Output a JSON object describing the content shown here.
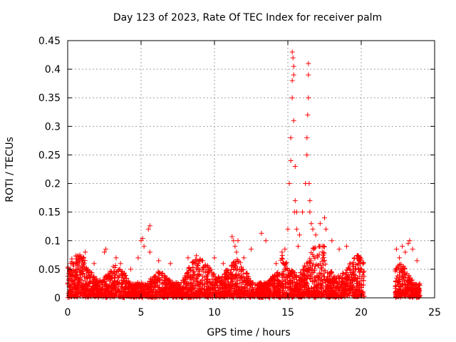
{
  "chart_data": {
    "type": "scatter",
    "title": "Day 123 of 2023, Rate Of TEC Index for receiver palm",
    "xlabel": "GPS time / hours",
    "ylabel": "ROTI / TECUs",
    "xlim": [
      0,
      25
    ],
    "ylim": [
      0,
      0.45
    ],
    "xticks": [
      "0",
      "5",
      "10",
      "15",
      "20",
      "25"
    ],
    "yticks": [
      "0",
      "0.05",
      "0.1",
      "0.15",
      "0.2",
      "0.25",
      "0.3",
      "0.35",
      "0.4",
      "0.45"
    ],
    "grid": true,
    "marker": "+",
    "series_color": "#ff0000",
    "data_gap_hours": [
      20.2,
      22.3
    ],
    "series": [
      {
        "name": "ROTI",
        "x": [
          0.1,
          0.3,
          0.5,
          1.1,
          1.2,
          1.8,
          2.5,
          2.6,
          3.3,
          3.6,
          4.3,
          4.8,
          5.0,
          5.1,
          5.2,
          5.5,
          5.6,
          5.6,
          6.2,
          7.0,
          8.2,
          8.9,
          9.2,
          10.0,
          10.6,
          11.2,
          11.3,
          11.4,
          11.5,
          11.6,
          12.0,
          12.5,
          13.2,
          13.5,
          14.2,
          14.6,
          14.8,
          15.0,
          15.1,
          15.2,
          15.2,
          15.3,
          15.3,
          15.3,
          15.35,
          15.4,
          15.4,
          15.4,
          15.45,
          15.5,
          15.5,
          15.6,
          15.6,
          15.7,
          15.8,
          16.0,
          16.2,
          16.3,
          16.3,
          16.35,
          16.4,
          16.4,
          16.4,
          16.45,
          16.5,
          16.5,
          16.6,
          16.7,
          16.9,
          17.2,
          17.5,
          17.6,
          18.0,
          18.5,
          19.0,
          19.8,
          20.1,
          22.4,
          22.6,
          22.8,
          23.0,
          23.2,
          23.3,
          23.5,
          23.8
        ],
        "y": [
          0.03,
          0.04,
          0.03,
          0.07,
          0.08,
          0.06,
          0.08,
          0.085,
          0.07,
          0.06,
          0.05,
          0.07,
          0.1,
          0.104,
          0.09,
          0.12,
          0.126,
          0.08,
          0.065,
          0.06,
          0.07,
          0.06,
          0.065,
          0.07,
          0.06,
          0.107,
          0.1,
          0.09,
          0.08,
          0.1,
          0.07,
          0.085,
          0.113,
          0.1,
          0.06,
          0.08,
          0.085,
          0.12,
          0.2,
          0.24,
          0.28,
          0.35,
          0.38,
          0.43,
          0.42,
          0.405,
          0.39,
          0.31,
          0.15,
          0.23,
          0.17,
          0.15,
          0.12,
          0.09,
          0.11,
          0.15,
          0.2,
          0.25,
          0.28,
          0.32,
          0.35,
          0.39,
          0.41,
          0.2,
          0.17,
          0.15,
          0.13,
          0.12,
          0.11,
          0.13,
          0.14,
          0.12,
          0.1,
          0.085,
          0.09,
          0.06,
          0.04,
          0.085,
          0.07,
          0.09,
          0.08,
          0.095,
          0.1,
          0.085,
          0.065
        ]
      }
    ]
  }
}
